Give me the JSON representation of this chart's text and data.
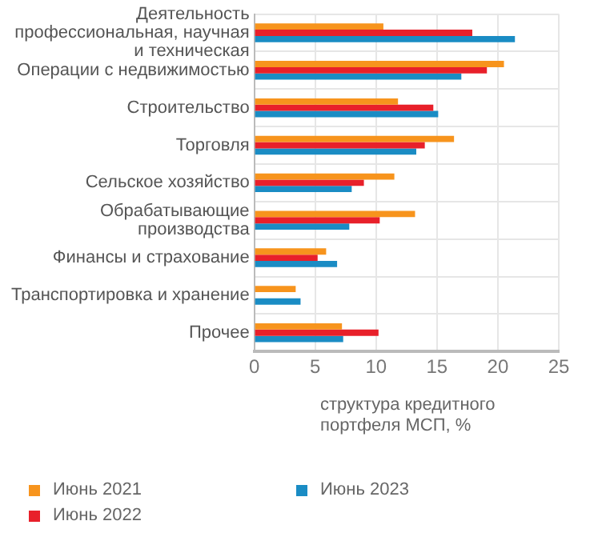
{
  "chart_data": {
    "type": "bar",
    "orientation": "horizontal",
    "xlabel": "структура кредитного портфеля МСП, %",
    "categories": [
      "Деятельность профессиональная, научная и техническая",
      "Операции с недвижимостью",
      "Строительство",
      "Торговля",
      "Сельское хозяйство",
      "Обрабатывающие производства",
      "Финансы и страхование",
      "Транспортировка и хранение",
      "Прочее"
    ],
    "series": [
      {
        "name": "Июнь 2021",
        "color": "#f7941d",
        "values": [
          10.6,
          20.5,
          11.8,
          16.4,
          11.5,
          13.2,
          5.9,
          3.4,
          7.2
        ]
      },
      {
        "name": "Июнь 2022",
        "color": "#e8202a",
        "values": [
          17.9,
          19.1,
          14.7,
          14.0,
          9.0,
          10.3,
          5.2,
          null,
          10.2
        ]
      },
      {
        "name": "Июнь 2023",
        "color": "#1a8cc4",
        "values": [
          21.4,
          17.0,
          15.1,
          13.3,
          8.0,
          7.8,
          6.8,
          3.8,
          7.3
        ]
      }
    ],
    "xlim": [
      0,
      25
    ],
    "xticks": [
      0,
      5,
      10,
      15,
      20,
      25
    ],
    "grid": true,
    "legend": "bottom"
  }
}
